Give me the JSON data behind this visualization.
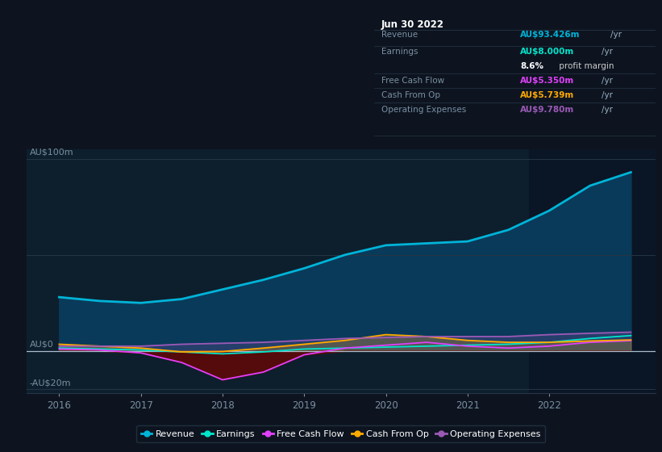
{
  "bg_color": "#0d1420",
  "plot_bg_color": "#0d1f2d",
  "highlight_bg_color": "#0a1525",
  "grid_color": "#253545",
  "text_color": "#7a8fa0",
  "years": [
    2016,
    2016.5,
    2017,
    2017.5,
    2018,
    2018.5,
    2019,
    2019.5,
    2020,
    2020.5,
    2021,
    2021.5,
    2022,
    2022.5,
    2023
  ],
  "revenue": [
    28,
    26,
    25,
    27,
    32,
    37,
    43,
    50,
    55,
    56,
    57,
    63,
    73,
    86,
    93
  ],
  "earnings": [
    1.5,
    1,
    0.5,
    -0.5,
    -1.5,
    -0.5,
    1,
    1.5,
    2,
    2.5,
    3,
    3.5,
    4.5,
    6.5,
    8
  ],
  "free_cash_flow": [
    1,
    0.5,
    -1,
    -6,
    -15,
    -11,
    -2,
    1.5,
    3,
    4.5,
    2.5,
    1.5,
    2.5,
    4.5,
    5.35
  ],
  "cash_from_op": [
    3.5,
    2.5,
    1.5,
    -0.5,
    -0.3,
    1.5,
    3.5,
    5.5,
    8.5,
    7.5,
    5.5,
    4.5,
    4.5,
    5.2,
    5.739
  ],
  "operating_expenses": [
    2.5,
    2.5,
    2.5,
    3.5,
    4,
    4.5,
    5.5,
    6.5,
    7,
    7.5,
    7.5,
    7.5,
    8.5,
    9.2,
    9.78
  ],
  "revenue_color": "#00b4d8",
  "earnings_color": "#00e5cc",
  "fcf_color": "#e040fb",
  "cashop_color": "#ffaa00",
  "opex_color": "#9b59b6",
  "revenue_fill_color": "#0a3a5a",
  "fcf_neg_fill_color": "#5a0a0a",
  "highlight_x_start": 2021.75,
  "highlight_x_end": 2023.3,
  "ylim_min": -22,
  "ylim_max": 105,
  "xlim_min": 2015.6,
  "xlim_max": 2023.3,
  "ylabel_100": "AU$100m",
  "ylabel_0": "AU$0",
  "ylabel_neg20": "-AU$20m",
  "x_ticks": [
    2016,
    2017,
    2018,
    2019,
    2020,
    2021,
    2022
  ],
  "legend_items": [
    "Revenue",
    "Earnings",
    "Free Cash Flow",
    "Cash From Op",
    "Operating Expenses"
  ],
  "legend_colors": [
    "#00b4d8",
    "#00e5cc",
    "#e040fb",
    "#ffaa00",
    "#9b59b6"
  ],
  "info_box": {
    "title": "Jun 30 2022",
    "rows": [
      {
        "label": "Revenue",
        "value": "AU$93.426m",
        "unit": "/yr",
        "value_color": "#00b4d8"
      },
      {
        "label": "Earnings",
        "value": "AU$8.000m",
        "unit": "/yr",
        "value_color": "#00e5cc"
      },
      {
        "label": "",
        "value": "8.6%",
        "unit": " profit margin",
        "value_color": "#ffffff"
      },
      {
        "label": "Free Cash Flow",
        "value": "AU$5.350m",
        "unit": "/yr",
        "value_color": "#e040fb"
      },
      {
        "label": "Cash From Op",
        "value": "AU$5.739m",
        "unit": "/yr",
        "value_color": "#ffaa00"
      },
      {
        "label": "Operating Expenses",
        "value": "AU$9.780m",
        "unit": "/yr",
        "value_color": "#9b59b6"
      }
    ],
    "box_color": "#060a0e",
    "border_color": "#253545",
    "label_color": "#7a8fa0",
    "unit_color": "#9ab0c0",
    "title_color": "#ffffff"
  }
}
